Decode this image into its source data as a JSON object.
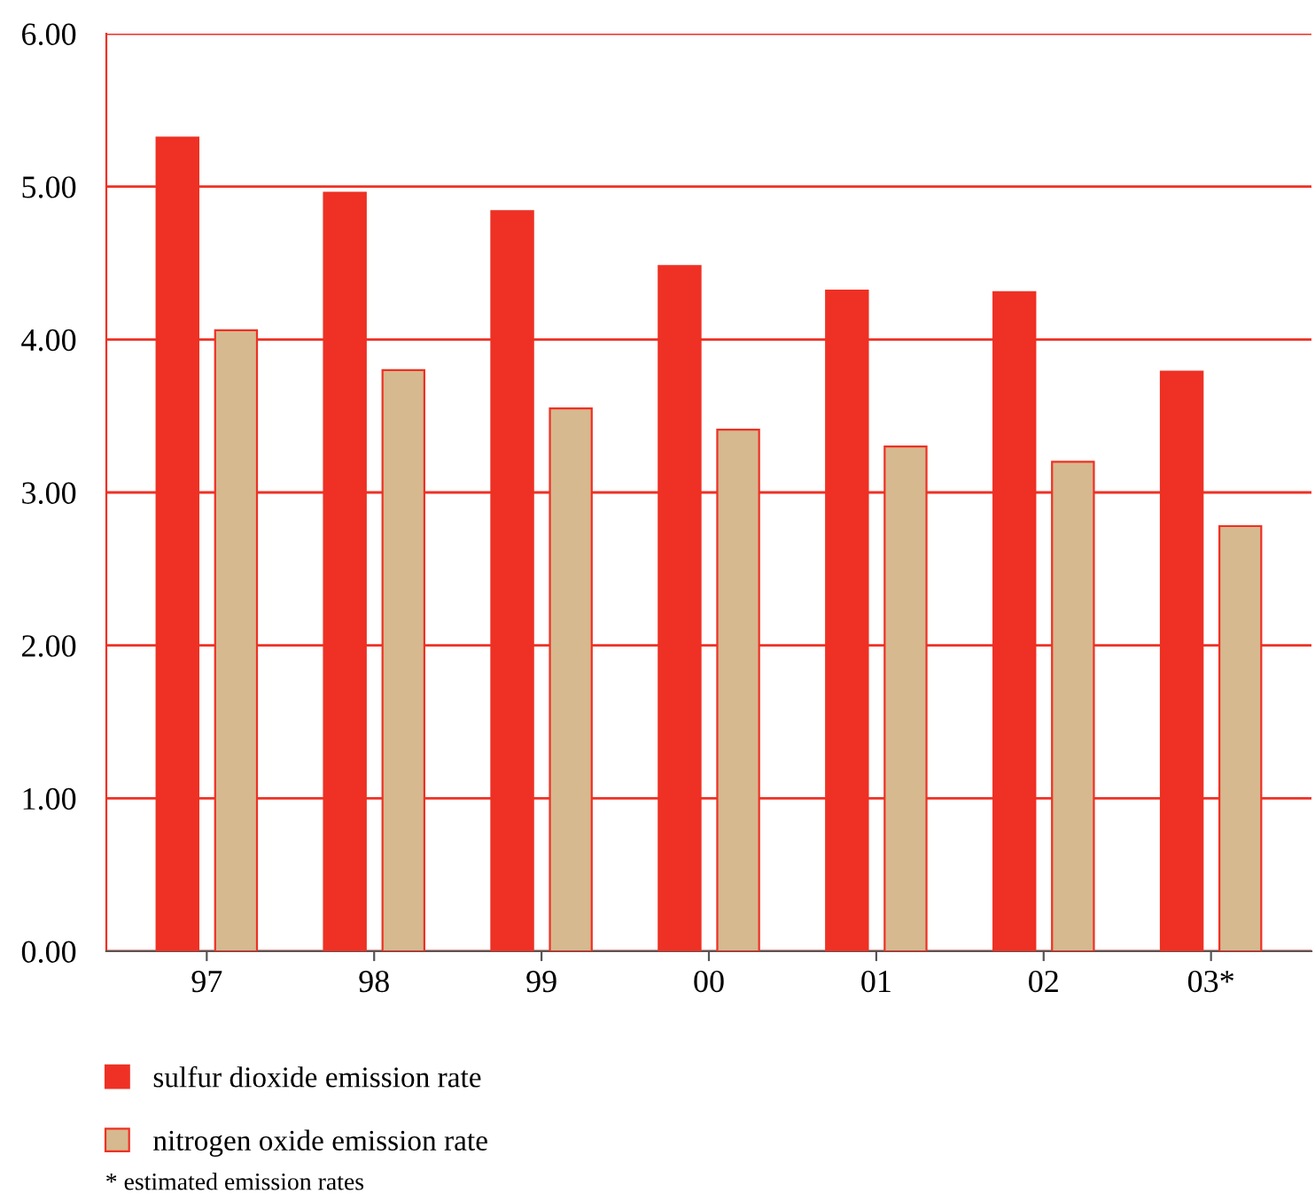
{
  "chart_data": {
    "type": "bar",
    "categories": [
      "97",
      "98",
      "99",
      "00",
      "01",
      "02",
      "03*"
    ],
    "series": [
      {
        "name": "sulfur dioxide emission rate",
        "color": "#ee3124",
        "values": [
          5.32,
          4.96,
          4.84,
          4.48,
          4.32,
          4.31,
          3.79
        ]
      },
      {
        "name": "nitrogen oxide emission rate",
        "color": "#d6b98f",
        "values": [
          4.06,
          3.8,
          3.55,
          3.41,
          3.3,
          3.2,
          2.78
        ]
      }
    ],
    "ylim": [
      0,
      6
    ],
    "yticks": [
      {
        "value": 0,
        "label": "0.00"
      },
      {
        "value": 1,
        "label": "1.00"
      },
      {
        "value": 2,
        "label": "2.00"
      },
      {
        "value": 3,
        "label": "3.00"
      },
      {
        "value": 4,
        "label": "4.00"
      },
      {
        "value": 5,
        "label": "5.00"
      },
      {
        "value": 6,
        "label": "6.00"
      }
    ],
    "grid": "y",
    "legend": "bottom left",
    "annotations": [
      "* estimated emission rates"
    ]
  }
}
